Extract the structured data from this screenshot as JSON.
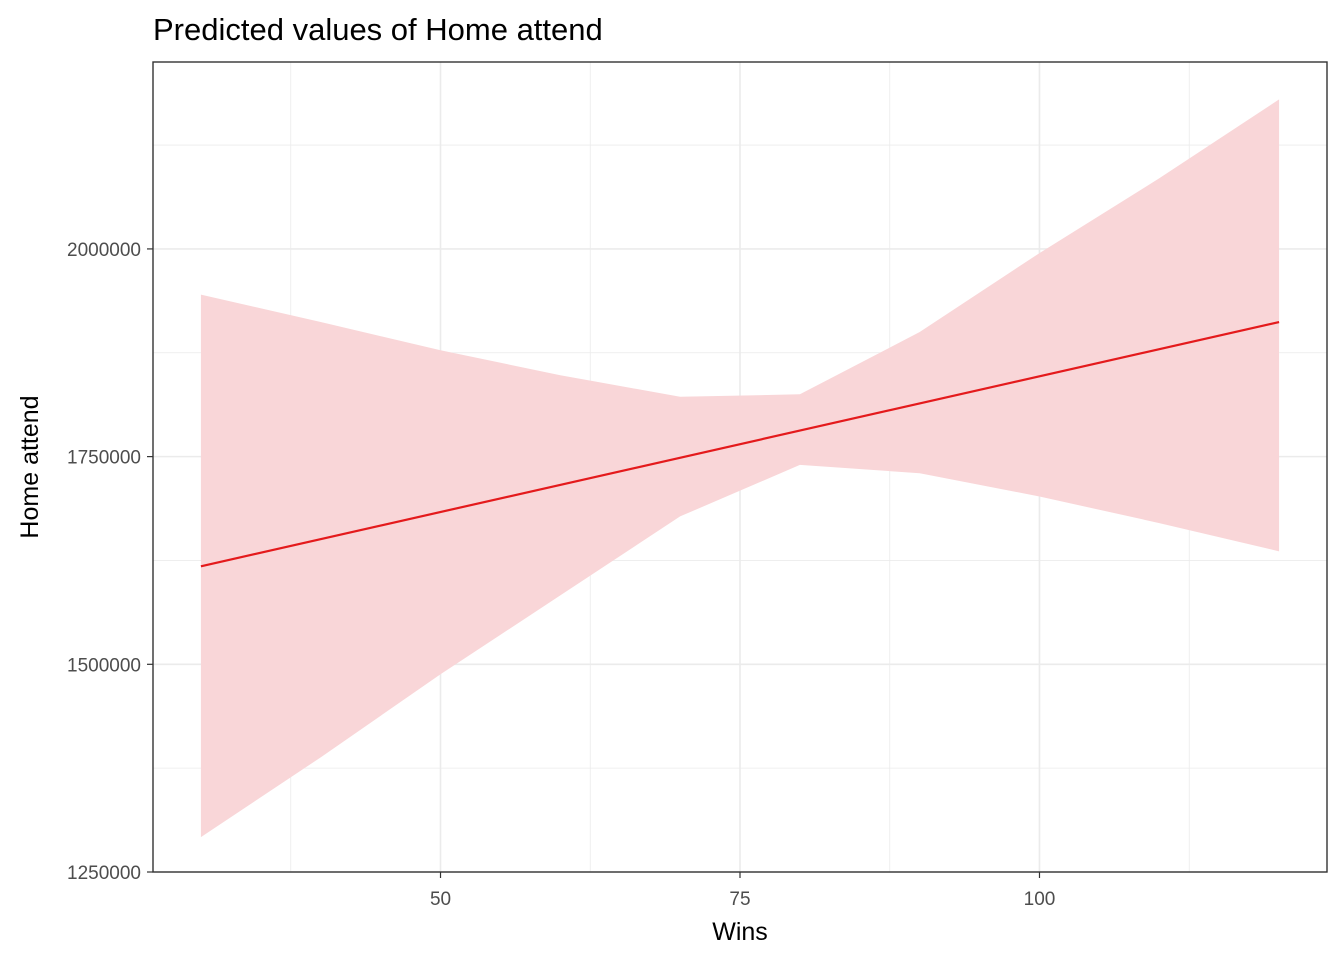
{
  "chart_data": {
    "type": "line",
    "title": "Predicted values of Home attend",
    "xlabel": "Wins",
    "ylabel": "Home attend",
    "xlim": [
      26,
      124
    ],
    "ylim": [
      1250000,
      2225000
    ],
    "x_ticks": [
      50,
      75,
      100
    ],
    "y_ticks": [
      1250000,
      1500000,
      1750000,
      2000000
    ],
    "x_tick_labels": [
      "50",
      "75",
      "100"
    ],
    "y_tick_labels": [
      "1250000",
      "1500000",
      "1750000",
      "2000000"
    ],
    "x_minor": [
      37.5,
      62.5,
      87.5,
      112.5
    ],
    "y_minor": [
      1375000,
      1625000,
      1875000,
      2125000
    ],
    "grid": true,
    "legend": "none",
    "colors": {
      "line": "#e41a1c",
      "ribbon": "#f9d6d8",
      "grid": "#ebebeb",
      "border": "#333333",
      "axis_text": "#4d4d4d"
    },
    "series": [
      {
        "x": [
          30,
          120
        ],
        "y": [
          1618000,
          1912000
        ],
        "ci_band": {
          "x": [
            30,
            40,
            50,
            60,
            70,
            80,
            90,
            100,
            110,
            120
          ],
          "upper": [
            1945000,
            1912000,
            1878000,
            1848000,
            1822000,
            1825000,
            1900000,
            1995000,
            2085000,
            2180000
          ],
          "lower": [
            1292000,
            1388000,
            1488000,
            1583000,
            1678000,
            1740000,
            1730000,
            1702000,
            1670000,
            1636000
          ]
        }
      }
    ]
  }
}
